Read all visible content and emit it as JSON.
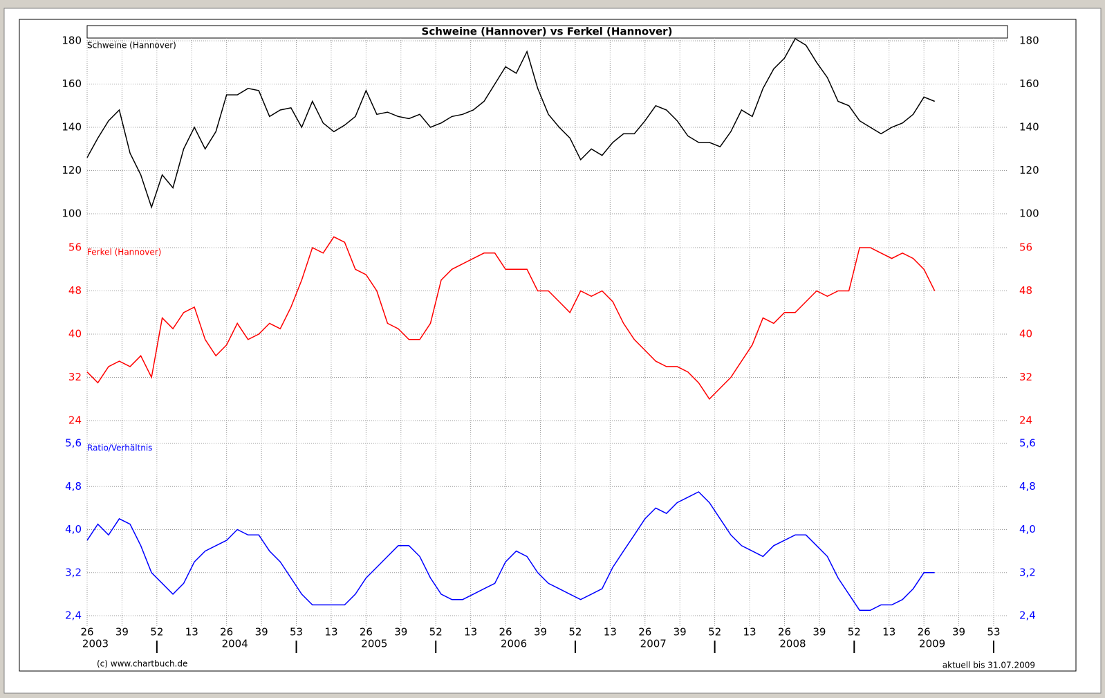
{
  "chart_data": {
    "type": "line",
    "title": "Schweine (Hannover)  vs Ferkel (Hannover)",
    "source": "(c) www.chartbuch.de",
    "note": "aktuell bis 31.07.2009",
    "xlim": [
      0,
      338
    ],
    "xticks": [
      {
        "value": 0,
        "label": "26"
      },
      {
        "value": 13,
        "label": "39"
      },
      {
        "value": 26,
        "label": "52"
      },
      {
        "value": 39,
        "label": "13"
      },
      {
        "value": 52,
        "label": "26"
      },
      {
        "value": 65,
        "label": "39"
      },
      {
        "value": 78,
        "label": "53"
      },
      {
        "value": 91,
        "label": "13"
      },
      {
        "value": 104,
        "label": "26"
      },
      {
        "value": 117,
        "label": "39"
      },
      {
        "value": 130,
        "label": "52"
      },
      {
        "value": 143,
        "label": "13"
      },
      {
        "value": 156,
        "label": "26"
      },
      {
        "value": 169,
        "label": "39"
      },
      {
        "value": 182,
        "label": "52"
      },
      {
        "value": 195,
        "label": "13"
      },
      {
        "value": 208,
        "label": "26"
      },
      {
        "value": 221,
        "label": "39"
      },
      {
        "value": 234,
        "label": "52"
      },
      {
        "value": 247,
        "label": "13"
      },
      {
        "value": 260,
        "label": "26"
      },
      {
        "value": 273,
        "label": "39"
      },
      {
        "value": 286,
        "label": "52"
      },
      {
        "value": 299,
        "label": "13"
      },
      {
        "value": 312,
        "label": "26"
      },
      {
        "value": 325,
        "label": "39"
      },
      {
        "value": 338,
        "label": "53"
      }
    ],
    "year_labels": [
      {
        "value": 0,
        "label": "2003"
      },
      {
        "value": 52,
        "label": "2004"
      },
      {
        "value": 104,
        "label": "2005"
      },
      {
        "value": 156,
        "label": "2006"
      },
      {
        "value": 208,
        "label": "2007"
      },
      {
        "value": 260,
        "label": "2008"
      },
      {
        "value": 312,
        "label": "2009"
      }
    ],
    "grid": true,
    "x": [
      0,
      4,
      8,
      12,
      16,
      20,
      24,
      28,
      32,
      36,
      40,
      44,
      48,
      52,
      56,
      60,
      64,
      68,
      72,
      76,
      80,
      84,
      88,
      92,
      96,
      100,
      104,
      108,
      112,
      116,
      120,
      124,
      128,
      132,
      136,
      140,
      144,
      148,
      152,
      156,
      160,
      164,
      168,
      172,
      176,
      180,
      184,
      188,
      192,
      196,
      200,
      204,
      208,
      212,
      216,
      220,
      224,
      228,
      232,
      236,
      240,
      244,
      248,
      252,
      256,
      260,
      264,
      268,
      272,
      276,
      280,
      284,
      288,
      292,
      296,
      300,
      304,
      308,
      312,
      316
    ],
    "series": [
      {
        "name": "Schweine (Hannover)",
        "color": "#000000",
        "ylim": [
          100,
          180
        ],
        "yticks": [
          100,
          120,
          140,
          160,
          180
        ],
        "values": [
          126,
          135,
          143,
          148,
          128,
          118,
          103,
          118,
          112,
          130,
          140,
          130,
          138,
          155,
          155,
          158,
          157,
          145,
          148,
          149,
          140,
          152,
          142,
          138,
          141,
          145,
          157,
          146,
          147,
          145,
          144,
          146,
          140,
          142,
          145,
          146,
          148,
          152,
          160,
          168,
          165,
          175,
          158,
          146,
          140,
          135,
          125,
          130,
          127,
          133,
          137,
          137,
          143,
          150,
          148,
          143,
          136,
          133,
          133,
          131,
          138,
          148,
          145,
          158,
          167,
          172,
          181,
          178,
          170,
          163,
          152,
          150,
          143,
          140,
          137,
          140,
          142,
          146,
          154,
          152
        ]
      },
      {
        "name": "Ferkel (Hannover)",
        "color": "#ff0000",
        "ylim": [
          24,
          56
        ],
        "yticks": [
          24,
          32,
          40,
          48,
          56
        ],
        "values": [
          33,
          31,
          34,
          35,
          34,
          36,
          32,
          43,
          41,
          44,
          45,
          39,
          36,
          38,
          42,
          39,
          40,
          42,
          41,
          45,
          50,
          56,
          55,
          58,
          57,
          52,
          51,
          48,
          42,
          41,
          39,
          39,
          42,
          50,
          52,
          53,
          54,
          55,
          55,
          52,
          52,
          52,
          48,
          48,
          46,
          44,
          48,
          47,
          48,
          46,
          42,
          39,
          37,
          35,
          34,
          34,
          33,
          31,
          28,
          30,
          32,
          35,
          38,
          43,
          42,
          44,
          44,
          46,
          48,
          47,
          48,
          48,
          56,
          56,
          55,
          54,
          55,
          54,
          52,
          48
        ]
      },
      {
        "name": "Ratio/Verhältnis",
        "color": "#0000ff",
        "ylim": [
          2.4,
          5.6
        ],
        "yticks": [
          {
            "value": 2.4,
            "label": "2,4"
          },
          {
            "value": 3.2,
            "label": "3,2"
          },
          {
            "value": 4.0,
            "label": "4,0"
          },
          {
            "value": 4.8,
            "label": "4,8"
          },
          {
            "value": 5.6,
            "label": "5,6"
          }
        ],
        "values": [
          3.8,
          4.1,
          3.9,
          4.2,
          4.1,
          3.7,
          3.2,
          3.0,
          2.8,
          3.0,
          3.4,
          3.6,
          3.7,
          3.8,
          4.0,
          3.9,
          3.9,
          3.6,
          3.4,
          3.1,
          2.8,
          2.6,
          2.6,
          2.6,
          2.6,
          2.8,
          3.1,
          3.3,
          3.5,
          3.7,
          3.7,
          3.5,
          3.1,
          2.8,
          2.7,
          2.7,
          2.8,
          2.9,
          3.0,
          3.4,
          3.6,
          3.5,
          3.2,
          3.0,
          2.9,
          2.8,
          2.7,
          2.8,
          2.9,
          3.3,
          3.6,
          3.9,
          4.2,
          4.4,
          4.3,
          4.5,
          4.6,
          4.7,
          4.5,
          4.2,
          3.9,
          3.7,
          3.6,
          3.5,
          3.7,
          3.8,
          3.9,
          3.9,
          3.7,
          3.5,
          3.1,
          2.8,
          2.5,
          2.5,
          2.6,
          2.6,
          2.7,
          2.9,
          3.2,
          3.2
        ]
      }
    ]
  }
}
